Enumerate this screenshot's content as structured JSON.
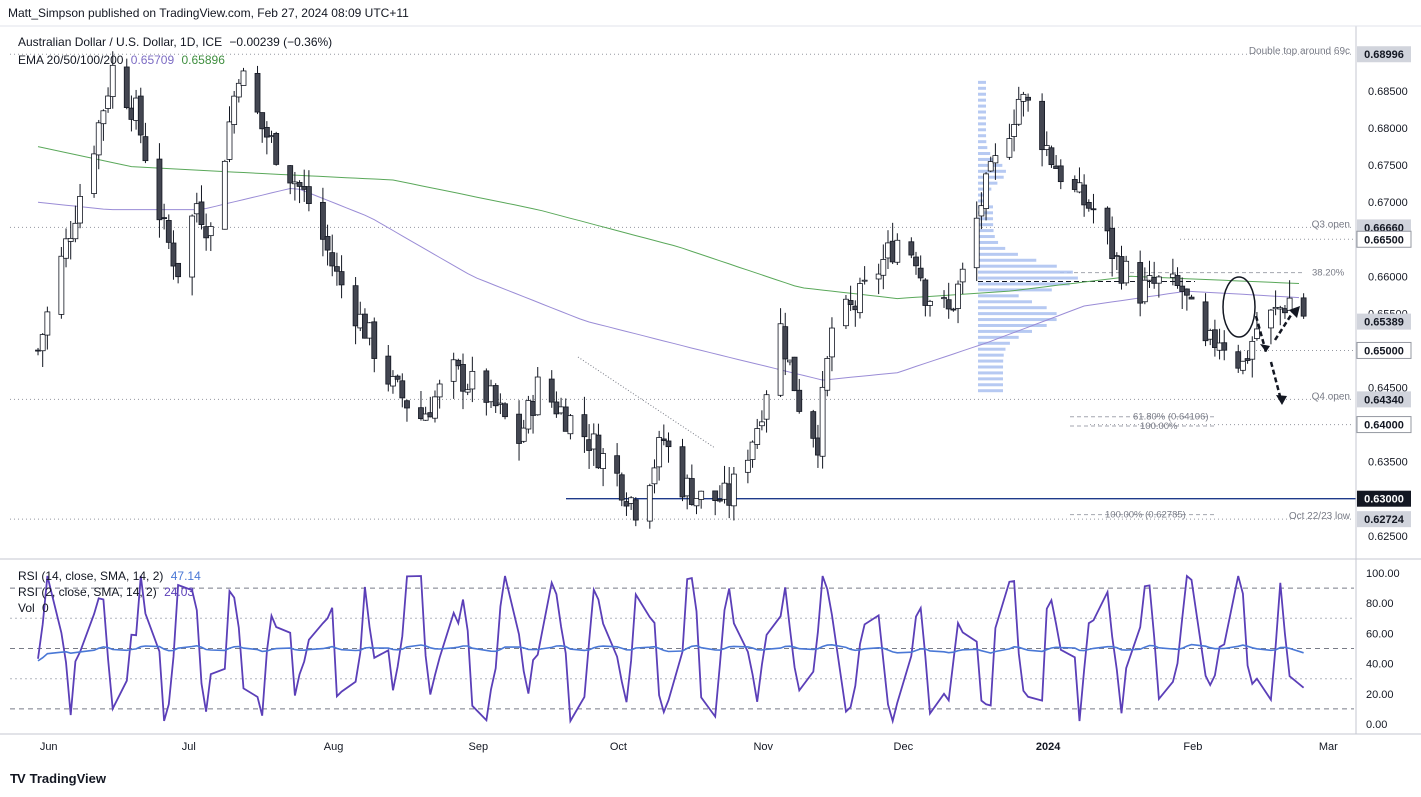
{
  "header": {
    "publisher": "Matt_Simpson published on TradingView.com, Feb 27, 2024 08:09 UTC+11",
    "symbol": "Australian Dollar / U.S. Dollar, 1D, ICE",
    "change": "−0.00239 (−0.36%)",
    "ema_label": "EMA 20/50/100/200",
    "ema_100": "0.65709",
    "ema_200": "0.65896",
    "rsi14_label": "RSI (14, close, SMA, 14, 2)",
    "rsi14_value": "47.14",
    "rsi2_label": "RSI (2, close, SMA, 14, 2)",
    "rsi2_value": "24.03",
    "vol_label": "Vol",
    "vol_value": "0"
  },
  "brand": {
    "name": "TradingView",
    "logo": "TV"
  },
  "colors": {
    "up": "#ffffff",
    "down": "#434651",
    "wick": "#131722",
    "ema100": "#9a8cd6",
    "ema200": "#5aa85a",
    "rsi14": "#4a78d6",
    "rsi2": "#5b3fb8",
    "volume_profile": "#a9bff0",
    "support_line": "#1e3a8a",
    "price_badge": "#434651",
    "highlight_badge": "#131722"
  },
  "chart_data": [
    {
      "type": "candlestick",
      "title": "Australian Dollar / U.S. Dollar, 1D, ICE",
      "ylim": [
        0.622,
        0.6935
      ],
      "x_months": [
        "Jun",
        "Jul",
        "Aug",
        "Sep",
        "Oct",
        "Nov",
        "Dec",
        "2024",
        "Feb",
        "Mar"
      ],
      "price_axis_ticks": [
        "0.68500",
        "0.68000",
        "0.67500",
        "0.67000",
        "0.66500",
        "0.66000",
        "0.65500",
        "0.65000",
        "0.64500",
        "0.64000",
        "0.63500",
        "0.63000",
        "0.62500"
      ],
      "close_path": [
        [
          "2023-05-31",
          0.65
        ],
        [
          "2023-06-05",
          0.662
        ],
        [
          "2023-06-12",
          0.678
        ],
        [
          "2023-06-16",
          0.688
        ],
        [
          "2023-06-21",
          0.682
        ],
        [
          "2023-06-27",
          0.666
        ],
        [
          "2023-06-30",
          0.661
        ],
        [
          "2023-07-04",
          0.67
        ],
        [
          "2023-07-07",
          0.666
        ],
        [
          "2023-07-13",
          0.688
        ],
        [
          "2023-07-18",
          0.68
        ],
        [
          "2023-07-24",
          0.674
        ],
        [
          "2023-07-28",
          0.67
        ],
        [
          "2023-08-03",
          0.66
        ],
        [
          "2023-08-09",
          0.653
        ],
        [
          "2023-08-15",
          0.645
        ],
        [
          "2023-08-21",
          0.641
        ],
        [
          "2023-08-28",
          0.647
        ],
        [
          "2023-09-04",
          0.644
        ],
        [
          "2023-09-11",
          0.638
        ],
        [
          "2023-09-15",
          0.645
        ],
        [
          "2023-09-20",
          0.642
        ],
        [
          "2023-09-26",
          0.638
        ],
        [
          "2023-10-02",
          0.633
        ],
        [
          "2023-10-06",
          0.629
        ],
        [
          "2023-10-12",
          0.638
        ],
        [
          "2023-10-16",
          0.632
        ],
        [
          "2023-10-20",
          0.63
        ],
        [
          "2023-10-26",
          0.63
        ],
        [
          "2023-11-01",
          0.64
        ],
        [
          "2023-11-06",
          0.653
        ],
        [
          "2023-11-10",
          0.643
        ],
        [
          "2023-11-14",
          0.638
        ],
        [
          "2023-11-17",
          0.653
        ],
        [
          "2023-11-22",
          0.656
        ],
        [
          "2023-11-28",
          0.662
        ],
        [
          "2023-12-01",
          0.665
        ],
        [
          "2023-12-05",
          0.663
        ],
        [
          "2023-12-07",
          0.658
        ],
        [
          "2023-12-12",
          0.655
        ],
        [
          "2023-12-15",
          0.66
        ],
        [
          "2023-12-19",
          0.67
        ],
        [
          "2023-12-22",
          0.675
        ],
        [
          "2023-12-27",
          0.684
        ],
        [
          "2023-12-29",
          0.683
        ],
        [
          "2024-01-03",
          0.676
        ],
        [
          "2024-01-08",
          0.671
        ],
        [
          "2024-01-12",
          0.669
        ],
        [
          "2024-01-17",
          0.662
        ],
        [
          "2024-01-22",
          0.658
        ],
        [
          "2024-01-26",
          0.659
        ],
        [
          "2024-01-31",
          0.658
        ],
        [
          "2024-02-05",
          0.65
        ],
        [
          "2024-02-08",
          0.652
        ],
        [
          "2024-02-13",
          0.648
        ],
        [
          "2024-02-16",
          0.653
        ],
        [
          "2024-02-20",
          0.655
        ],
        [
          "2024-02-23",
          0.657
        ],
        [
          "2024-02-26",
          0.655
        ]
      ],
      "ema100": [
        [
          "2023-05-31",
          0.67
        ],
        [
          "2023-06-15",
          0.669
        ],
        [
          "2023-07-05",
          0.669
        ],
        [
          "2023-07-25",
          0.672
        ],
        [
          "2023-08-10",
          0.668
        ],
        [
          "2023-09-01",
          0.66
        ],
        [
          "2023-09-25",
          0.654
        ],
        [
          "2023-10-20",
          0.65
        ],
        [
          "2023-11-15",
          0.646
        ],
        [
          "2023-12-01",
          0.647
        ],
        [
          "2023-12-20",
          0.651
        ],
        [
          "2024-01-10",
          0.656
        ],
        [
          "2024-02-01",
          0.658
        ],
        [
          "2024-02-26",
          0.6571
        ]
      ],
      "ema200": [
        [
          "2023-05-31",
          0.6775
        ],
        [
          "2023-06-20",
          0.6748
        ],
        [
          "2023-07-20",
          0.6738
        ],
        [
          "2023-08-15",
          0.673
        ],
        [
          "2023-09-15",
          0.669
        ],
        [
          "2023-10-15",
          0.664
        ],
        [
          "2023-11-10",
          0.6585
        ],
        [
          "2023-12-01",
          0.657
        ],
        [
          "2023-12-25",
          0.658
        ],
        [
          "2024-01-20",
          0.66
        ],
        [
          "2024-02-26",
          0.659
        ]
      ],
      "price_badges": [
        {
          "value": "0.68996",
          "price": 0.68996
        },
        {
          "value": "0.66660",
          "price": 0.6666
        },
        {
          "value": "0.66500",
          "price": 0.665
        },
        {
          "value": "0.65389",
          "price": 0.65389
        },
        {
          "value": "0.65000",
          "price": 0.65
        },
        {
          "value": "0.64340",
          "price": 0.6434
        },
        {
          "value": "0.64000",
          "price": 0.64
        },
        {
          "value": "0.63000",
          "price": 0.63
        },
        {
          "value": "0.62724",
          "price": 0.62724
        }
      ],
      "horizontal_levels": [
        {
          "price": 0.68996,
          "label": "Double top around 69c"
        },
        {
          "price": 0.6666,
          "label": "Q3 open"
        },
        {
          "price": 0.6434,
          "label": "Q4 open"
        },
        {
          "price": 0.62724,
          "label": "Oct 22/23 low"
        },
        {
          "price": 0.63,
          "label": ""
        }
      ],
      "fib_levels": [
        {
          "price": 0.6605,
          "label": "38.20%"
        },
        {
          "price": 0.64106,
          "label": "61.80% (0.64106)"
        },
        {
          "price": 0.6398,
          "label": "100.00%"
        },
        {
          "price": 0.62785,
          "label": "100.00% (0.62785)"
        }
      ]
    },
    {
      "type": "line",
      "title": "RSI (14, close, SMA, 14, 2)",
      "ylim": [
        0,
        100
      ],
      "y_ticks": [
        "100.00",
        "80.00",
        "60.00",
        "40.00",
        "20.00",
        "0.00"
      ],
      "series": [
        {
          "name": "RSI (14, close, SMA, 14, 2)",
          "last": 47.14
        },
        {
          "name": "RSI (2, close, SMA, 14, 2)",
          "last": 24.03
        }
      ]
    }
  ]
}
